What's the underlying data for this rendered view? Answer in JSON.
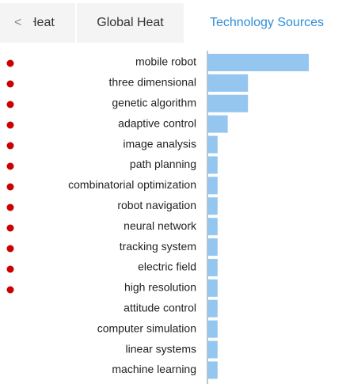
{
  "tabs": [
    "Heat",
    "Global Heat",
    "Technology Sources"
  ],
  "chart_data": {
    "type": "bar",
    "orientation": "horizontal",
    "categories": [
      "mobile robot",
      "three dimensional",
      "genetic algorithm",
      "adaptive control",
      "image analysis",
      "path planning",
      "combinatorial optimization",
      "robot navigation",
      "neural network",
      "tracking system",
      "electric field",
      "high resolution",
      "attitude control",
      "computer simulation",
      "linear systems",
      "machine learning"
    ],
    "values": [
      10,
      4,
      4,
      2,
      1,
      1,
      1,
      1,
      1,
      1,
      1,
      1,
      1,
      1,
      1,
      1
    ],
    "color": "#94c6ef",
    "xlim": [
      0,
      10
    ]
  }
}
